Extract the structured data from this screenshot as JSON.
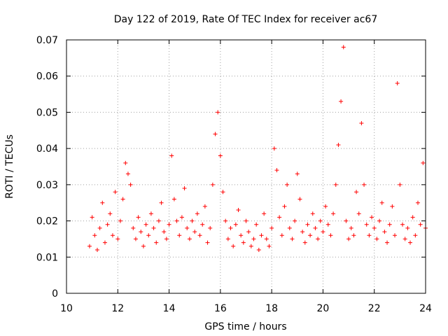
{
  "chart_data": {
    "type": "scatter",
    "title": "Day 122 of 2019, Rate Of TEC Index for receiver ac67",
    "xlabel": "GPS time / hours",
    "ylabel": "ROTI / TECUs",
    "xlim": [
      10,
      24
    ],
    "ylim": [
      0,
      0.07
    ],
    "x_ticks": [
      10,
      12,
      14,
      16,
      18,
      20,
      22,
      24
    ],
    "y_ticks": [
      0,
      0.01,
      0.02,
      0.03,
      0.04,
      0.05,
      0.06,
      0.07
    ],
    "x_tick_labels": [
      "10",
      "12",
      "14",
      "16",
      "18",
      "20",
      "22",
      "24"
    ],
    "y_tick_labels": [
      "0",
      "0.01",
      "0.02",
      "0.03",
      "0.04",
      "0.05",
      "0.06",
      "0.07"
    ],
    "grid": true,
    "marker": "+",
    "color": "#ff0000",
    "series": [
      {
        "name": "ROTI",
        "x": [
          10.9,
          11.0,
          11.1,
          11.2,
          11.3,
          11.4,
          11.5,
          11.6,
          11.7,
          11.8,
          11.9,
          12.0,
          12.1,
          12.2,
          12.3,
          12.4,
          12.5,
          12.6,
          12.7,
          12.8,
          12.9,
          13.0,
          13.1,
          13.2,
          13.3,
          13.4,
          13.5,
          13.6,
          13.7,
          13.8,
          13.9,
          14.0,
          14.1,
          14.2,
          14.3,
          14.4,
          14.5,
          14.6,
          14.7,
          14.8,
          14.9,
          15.0,
          15.1,
          15.2,
          15.3,
          15.4,
          15.5,
          15.6,
          15.7,
          15.8,
          15.9,
          16.0,
          16.1,
          16.2,
          16.3,
          16.4,
          16.5,
          16.6,
          16.7,
          16.8,
          16.9,
          17.0,
          17.1,
          17.2,
          17.3,
          17.4,
          17.5,
          17.6,
          17.7,
          17.8,
          17.9,
          18.0,
          18.1,
          18.2,
          18.3,
          18.4,
          18.5,
          18.6,
          18.7,
          18.8,
          18.9,
          19.0,
          19.1,
          19.2,
          19.3,
          19.4,
          19.5,
          19.6,
          19.7,
          19.8,
          19.9,
          20.0,
          20.1,
          20.2,
          20.3,
          20.4,
          20.5,
          20.6,
          20.7,
          20.8,
          20.9,
          21.0,
          21.1,
          21.2,
          21.3,
          21.4,
          21.5,
          21.6,
          21.7,
          21.8,
          21.9,
          22.0,
          22.1,
          22.2,
          22.3,
          22.4,
          22.5,
          22.6,
          22.7,
          22.8,
          22.9,
          23.0,
          23.1,
          23.2,
          23.3,
          23.4,
          23.5,
          23.6,
          23.7,
          23.8,
          23.9,
          24.0
        ],
        "y": [
          0.013,
          0.021,
          0.016,
          0.012,
          0.018,
          0.025,
          0.014,
          0.019,
          0.022,
          0.016,
          0.028,
          0.015,
          0.02,
          0.026,
          0.036,
          0.033,
          0.03,
          0.018,
          0.015,
          0.021,
          0.017,
          0.013,
          0.019,
          0.016,
          0.022,
          0.018,
          0.014,
          0.02,
          0.025,
          0.017,
          0.015,
          0.019,
          0.038,
          0.026,
          0.02,
          0.016,
          0.021,
          0.029,
          0.018,
          0.015,
          0.02,
          0.017,
          0.022,
          0.016,
          0.019,
          0.024,
          0.014,
          0.018,
          0.03,
          0.044,
          0.05,
          0.038,
          0.028,
          0.02,
          0.015,
          0.018,
          0.013,
          0.019,
          0.023,
          0.016,
          0.014,
          0.02,
          0.017,
          0.013,
          0.015,
          0.019,
          0.012,
          0.016,
          0.022,
          0.015,
          0.013,
          0.018,
          0.04,
          0.034,
          0.021,
          0.016,
          0.024,
          0.03,
          0.018,
          0.015,
          0.02,
          0.033,
          0.026,
          0.017,
          0.014,
          0.019,
          0.016,
          0.022,
          0.018,
          0.015,
          0.02,
          0.017,
          0.024,
          0.019,
          0.016,
          0.022,
          0.03,
          0.041,
          0.053,
          0.068,
          0.02,
          0.015,
          0.018,
          0.016,
          0.028,
          0.022,
          0.047,
          0.03,
          0.019,
          0.016,
          0.021,
          0.018,
          0.015,
          0.02,
          0.025,
          0.017,
          0.014,
          0.019,
          0.024,
          0.016,
          0.058,
          0.03,
          0.019,
          0.015,
          0.018,
          0.014,
          0.021,
          0.016,
          0.025,
          0.019,
          0.036,
          0.018
        ]
      }
    ]
  }
}
